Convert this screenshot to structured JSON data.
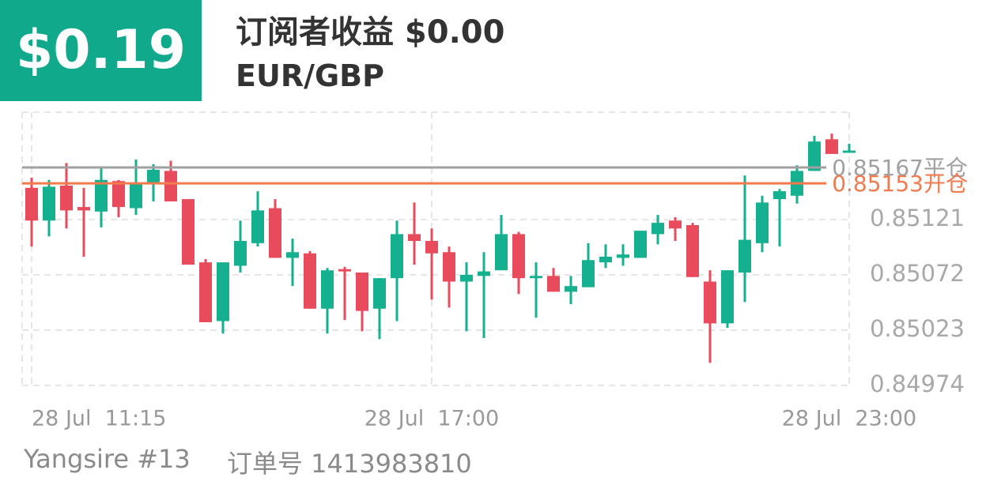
{
  "header": {
    "profit": "$0.19",
    "title": "订阅者收益 $0.00",
    "symbol": "EUR/GBP"
  },
  "footer": {
    "user": "Yangsire #13",
    "order": "订单号 1413983810"
  },
  "chart_data": {
    "type": "candlestick",
    "up_color": "#14b08f",
    "down_color": "#e84b5b",
    "open": [
      0.85149,
      0.8512,
      0.85151,
      0.85132,
      0.85128,
      0.85155,
      0.85131,
      0.85153,
      0.85164,
      0.85139,
      0.85083,
      0.85031,
      0.8508,
      0.851,
      0.85131,
      0.85087,
      0.85091,
      0.85042,
      0.85077,
      0.85074,
      0.85042,
      0.85069,
      0.85108,
      0.85102,
      0.85092,
      0.85066,
      0.85071,
      0.85076,
      0.85108,
      0.85069,
      0.85071,
      0.85057,
      0.85061,
      0.85083,
      0.85087,
      0.85087,
      0.85108,
      0.8512,
      0.85116,
      0.85066,
      0.85029,
      0.85074,
      0.851,
      0.85139,
      0.85142,
      0.85164,
      0.85192,
      0.8518
    ],
    "high": [
      0.85158,
      0.85156,
      0.85171,
      0.85149,
      0.85168,
      0.85156,
      0.85174,
      0.8517,
      0.85173,
      0.85139,
      0.85086,
      0.85083,
      0.8512,
      0.85146,
      0.85139,
      0.85104,
      0.85093,
      0.85078,
      0.85079,
      0.85074,
      0.85069,
      0.8512,
      0.85136,
      0.85113,
      0.85097,
      0.85083,
      0.85092,
      0.85125,
      0.8511,
      0.85083,
      0.85078,
      0.85071,
      0.851,
      0.85099,
      0.85099,
      0.85111,
      0.85125,
      0.85123,
      0.85118,
      0.85076,
      0.85076,
      0.8516,
      0.85142,
      0.85148,
      0.85169,
      0.85195,
      0.85197,
      0.85188
    ],
    "low": [
      0.85097,
      0.85106,
      0.85113,
      0.85088,
      0.85114,
      0.85123,
      0.85125,
      0.85137,
      0.85137,
      0.85081,
      0.8503,
      0.8502,
      0.85074,
      0.85097,
      0.85087,
      0.85062,
      0.85042,
      0.8502,
      0.85032,
      0.85022,
      0.85015,
      0.85031,
      0.85081,
      0.8505,
      0.85043,
      0.85022,
      0.85016,
      0.85076,
      0.85055,
      0.85034,
      0.85057,
      0.85046,
      0.85061,
      0.85078,
      0.8508,
      0.85087,
      0.85099,
      0.85102,
      0.8507,
      0.84994,
      0.85025,
      0.85048,
      0.85092,
      0.85097,
      0.85135,
      0.85164,
      0.85179,
      0.8518
    ],
    "close": [
      0.8512,
      0.8515,
      0.85129,
      0.85129,
      0.85156,
      0.85132,
      0.85152,
      0.85165,
      0.85137,
      0.85081,
      0.8503,
      0.85083,
      0.85102,
      0.85129,
      0.85087,
      0.85092,
      0.85042,
      0.85076,
      0.85075,
      0.8504,
      0.85069,
      0.85108,
      0.85102,
      0.85091,
      0.85066,
      0.85072,
      0.85075,
      0.85108,
      0.85069,
      0.85071,
      0.85057,
      0.85062,
      0.85085,
      0.85088,
      0.8509,
      0.85111,
      0.85118,
      0.85113,
      0.8507,
      0.85029,
      0.85076,
      0.85103,
      0.85136,
      0.85146,
      0.85164,
      0.8519,
      0.85179,
      0.85182
    ],
    "ylim": [
      0.84974,
      0.85216
    ],
    "yticks": [
      0.84974,
      0.85023,
      0.85072,
      0.85121
    ],
    "xticks": [
      {
        "value": 0,
        "label": "28 Jul  11:15"
      },
      {
        "value": 23,
        "label": "28 Jul  17:00"
      },
      {
        "value": 47,
        "label": "28 Jul  23:00"
      }
    ],
    "grid": true,
    "reference_lines": [
      {
        "value": 0.85167,
        "label": "0.85167平仓",
        "color": "#a0a0a0"
      },
      {
        "value": 0.85153,
        "label": "0.85153开仓",
        "color": "#f27a4c"
      }
    ]
  }
}
